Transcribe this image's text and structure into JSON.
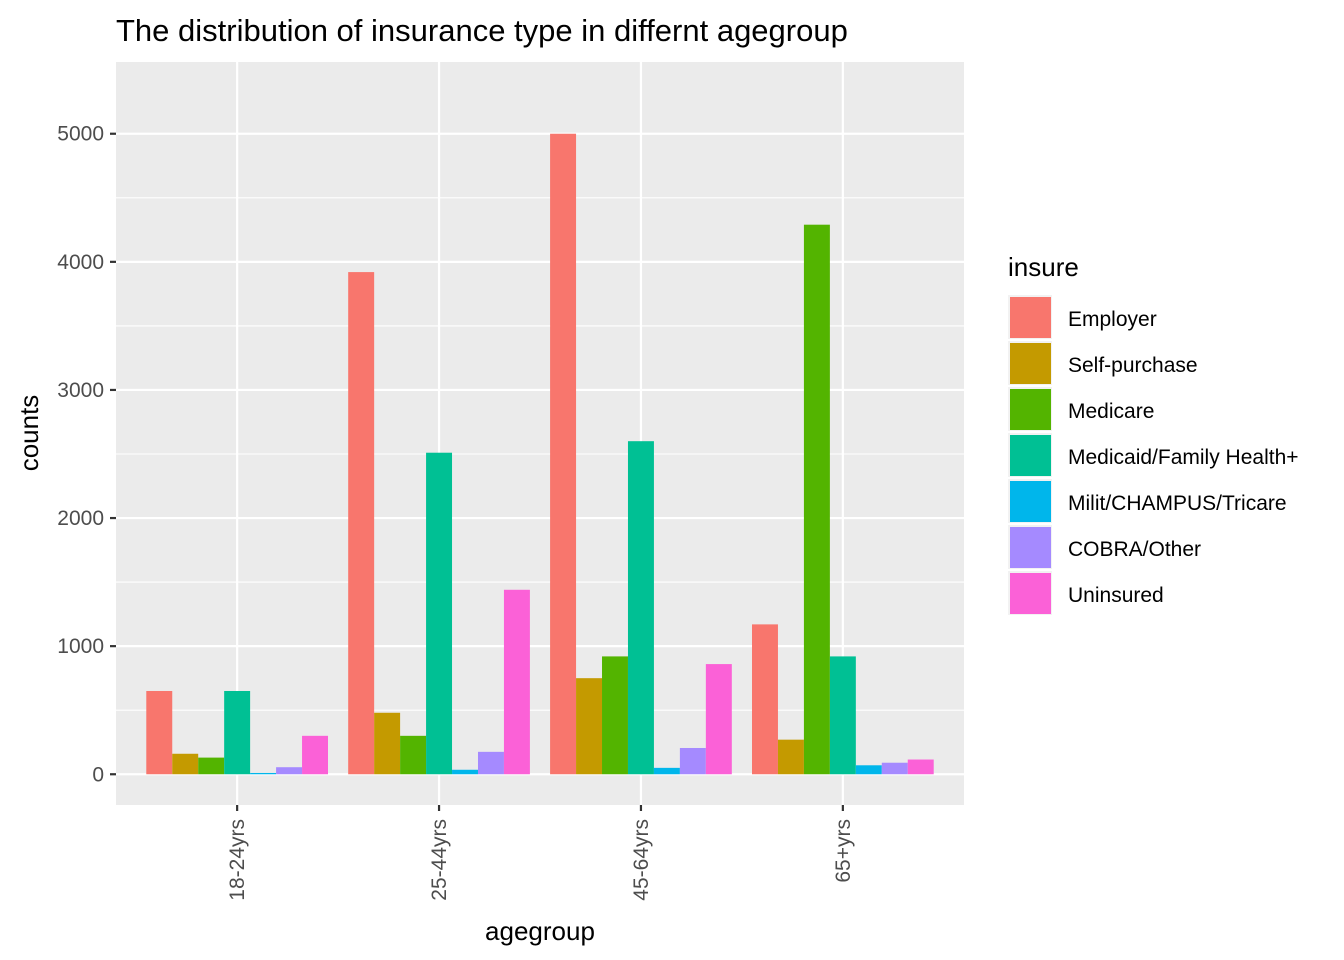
{
  "chart_data": {
    "type": "bar",
    "title": "The distribution of insurance type in differnt agegroup",
    "xlabel": "agegroup",
    "ylabel": "counts",
    "categories": [
      "18-24yrs",
      "25-44yrs",
      "45-64yrs",
      "65+yrs"
    ],
    "y_ticks": [
      "0",
      "1000",
      "2000",
      "3000",
      "4000",
      "5000"
    ],
    "ylim": [
      -240,
      5560
    ],
    "grid": true,
    "legend_title": "insure",
    "legend_position": "right",
    "series": [
      {
        "name": "Employer",
        "color": "#F8766D",
        "values": [
          650,
          3920,
          5000,
          1170
        ]
      },
      {
        "name": "Self-purchase",
        "color": "#C49A00",
        "values": [
          160,
          480,
          750,
          270
        ]
      },
      {
        "name": "Medicare",
        "color": "#53B400",
        "values": [
          130,
          300,
          920,
          4290
        ]
      },
      {
        "name": "Medicaid/Family Health+",
        "color": "#00C094",
        "values": [
          650,
          2510,
          2600,
          920
        ]
      },
      {
        "name": "Milit/CHAMPUS/Tricare",
        "color": "#00B6EB",
        "values": [
          10,
          35,
          50,
          70
        ]
      },
      {
        "name": "COBRA/Other",
        "color": "#A58AFF",
        "values": [
          55,
          175,
          205,
          90
        ]
      },
      {
        "name": "Uninsured",
        "color": "#FB61D7",
        "values": [
          300,
          1440,
          860,
          115
        ]
      }
    ]
  }
}
